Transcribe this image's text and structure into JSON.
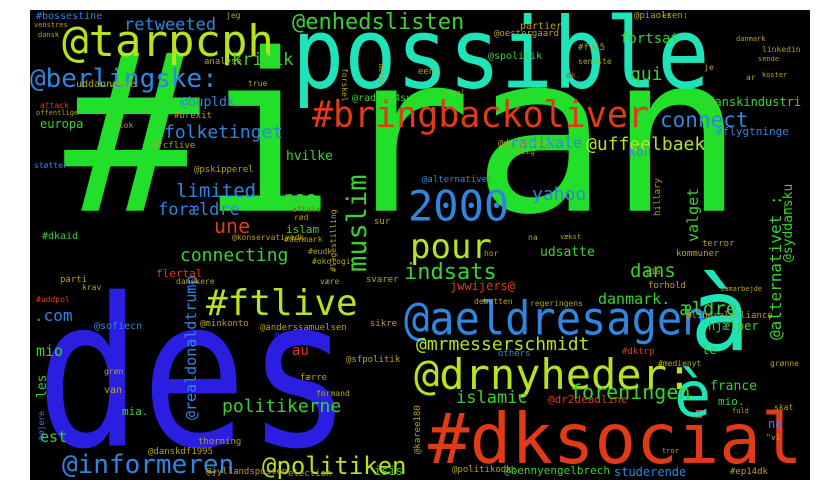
{
  "palette": {
    "green": "#22e02a",
    "teal": "#1fe3b9",
    "blue": "#2a1fe0",
    "midblue": "#2f86e0",
    "red": "#e03a16",
    "lime": "#b6e21f",
    "olive": "#b4a21d",
    "grass": "#3bd230"
  },
  "words": [
    {
      "text": "#iran",
      "color": "green"
    },
    {
      "text": "des",
      "color": "blue"
    },
    {
      "text": "possible",
      "color": "teal"
    },
    {
      "text": "#dksocial",
      "color": "red"
    },
    {
      "text": "@tarpcph",
      "color": "lime"
    },
    {
      "text": "#bringbackoliver",
      "color": "red"
    },
    {
      "text": "@aeldresagen",
      "color": "midblue"
    },
    {
      "text": "@drnyheder:",
      "color": "lime"
    },
    {
      "text": "à",
      "color": "teal"
    },
    {
      "text": "è",
      "color": "teal"
    },
    {
      "text": "2000",
      "color": "midblue"
    },
    {
      "text": "pour",
      "color": "lime"
    },
    {
      "text": "#ftlive",
      "color": "lime"
    },
    {
      "text": "@berlingske:",
      "color": "midblue"
    },
    {
      "text": "@informeren",
      "color": "midblue"
    },
    {
      "text": "@politiken",
      "color": "lime"
    },
    {
      "text": "@enhedslisten",
      "color": "grass"
    },
    {
      "text": "muslim",
      "color": "grass"
    },
    {
      "text": "indsats",
      "color": "grass"
    },
    {
      "text": "connect",
      "color": "midblue"
    },
    {
      "text": "retweeted",
      "color": "midblue"
    },
    {
      "text": "kritik",
      "color": "grass"
    },
    {
      "text": "folketinget",
      "color": "midblue"
    },
    {
      "text": "limited",
      "color": "midblue"
    },
    {
      "text": "forældre",
      "color": "midblue"
    },
    {
      "text": "connecting",
      "color": "grass"
    },
    {
      "text": "une",
      "color": "red"
    },
    {
      "text": "pas",
      "color": "grass"
    },
    {
      "text": "yahoo",
      "color": "midblue"
    },
    {
      "text": "@uffeelbaek",
      "color": "lime"
    },
    {
      "text": "radikale",
      "color": "midblue"
    },
    {
      "text": "@mrmesserschmidt",
      "color": "lime"
    },
    {
      "text": "foreningen",
      "color": "grass"
    },
    {
      "text": "politikerne",
      "color": "grass"
    },
    {
      "text": "islamic",
      "color": "grass"
    },
    {
      "text": "danmark.",
      "color": "grass"
    },
    {
      "text": "dans",
      "color": "grass"
    },
    {
      "text": "ældre",
      "color": "grass"
    },
    {
      "text": "@alternativet_:",
      "color": "grass"
    },
    {
      "text": "@syddansku",
      "color": "grass"
    },
    {
      "text": "valget",
      "color": "grass"
    },
    {
      "text": "qui",
      "color": "grass"
    },
    {
      "text": "fortsat",
      "color": "grass"
    },
    {
      "text": "mio",
      "color": "grass"
    },
    {
      "text": "est",
      "color": "grass"
    },
    {
      "text": ".com",
      "color": "midblue"
    },
    {
      "text": "@bupldk",
      "color": "midblue"
    },
    {
      "text": "@danskindustri",
      "color": "grass"
    },
    {
      "text": "#flygtninge",
      "color": "midblue"
    },
    {
      "text": "kbh",
      "color": "midblue"
    },
    {
      "text": "jwwijers@",
      "color": "red"
    },
    {
      "text": "udsatte",
      "color": "grass"
    },
    {
      "text": "studerende",
      "color": "midblue"
    },
    {
      "text": "@bennyengelbrech",
      "color": "grass"
    },
    {
      "text": "isis",
      "color": "grass"
    },
    {
      "text": "@dr2deadline",
      "color": "red"
    },
    {
      "text": "au",
      "color": "red"
    },
    {
      "text": "europa",
      "color": "grass"
    },
    {
      "text": "flertal",
      "color": "red"
    },
    {
      "text": "hvilke",
      "color": "grass"
    },
    {
      "text": "islam",
      "color": "grass"
    },
    {
      "text": "@realdonaldtrump",
      "color": "midblue"
    },
    {
      "text": "les",
      "color": "grass"
    },
    {
      "text": "mia.",
      "color": "grass"
    },
    {
      "text": "hjælper",
      "color": "grass"
    },
    {
      "text": "france",
      "color": "grass"
    },
    {
      "text": "mio.",
      "color": "grass"
    },
    {
      "text": "ne",
      "color": "midblue"
    },
    {
      "text": "@radio24syv",
      "color": "grass"
    },
    {
      "text": "@spolitik",
      "color": "grass"
    },
    {
      "text": "#dkaid",
      "color": "grass"
    },
    {
      "text": "analyse",
      "color": "olive"
    },
    {
      "text": "partier",
      "color": "olive"
    },
    {
      "text": "@oestergaard",
      "color": "olive"
    },
    {
      "text": "linkedin",
      "color": "olive"
    },
    {
      "text": "#fv15",
      "color": "olive"
    },
    {
      "text": "seneste",
      "color": "olive"
    },
    {
      "text": "uddannelse",
      "color": "olive"
    },
    {
      "text": "attack",
      "color": "red"
    },
    {
      "text": "blok",
      "color": "olive"
    },
    {
      "text": "#brexit",
      "color": "olive"
    },
    {
      "text": "#fcflive",
      "color": "olive"
    },
    {
      "text": "@pskipperel",
      "color": "olive"
    },
    {
      "text": "@alternativet_",
      "color": "midblue"
    },
    {
      "text": "@konservativedk",
      "color": "olive"
    },
    {
      "text": "#eudk",
      "color": "olive"
    },
    {
      "text": "#okologi",
      "color": "olive"
    },
    {
      "text": "#denmark",
      "color": "olive"
    },
    {
      "text": "danskere",
      "color": "olive"
    },
    {
      "text": "@sofiecn",
      "color": "midblue"
    },
    {
      "text": "@minkonto",
      "color": "olive"
    },
    {
      "text": "@anderssamuelsen",
      "color": "olive"
    },
    {
      "text": "@liberalalliance",
      "color": "olive"
    },
    {
      "text": "@sfpolitik",
      "color": "olive"
    },
    {
      "text": "#dktrp",
      "color": "red"
    },
    {
      "text": "#medienyt",
      "color": "olive"
    },
    {
      "text": "others",
      "color": "midblue"
    },
    {
      "text": "@drnyheder",
      "color": "olive"
    },
    {
      "text": "svarer",
      "color": "olive"
    },
    {
      "text": "sikre",
      "color": "olive"
    },
    {
      "text": "parti",
      "color": "olive"
    },
    {
      "text": "hillary",
      "color": "olive"
    },
    {
      "text": "kommuner",
      "color": "olive"
    },
    {
      "text": "terror",
      "color": "olive"
    },
    {
      "text": "@dkkorea",
      "color": "blue"
    },
    {
      "text": "@piaolsen:",
      "color": "olive"
    },
    {
      "text": "#bossestine",
      "color": "midblue"
    },
    {
      "text": "@politikodk:",
      "color": "olive"
    },
    {
      "text": "@karee180",
      "color": "olive"
    },
    {
      "text": "@jyllandsposten",
      "color": "olive"
    },
    {
      "text": "#ep14dk",
      "color": "olive"
    },
    {
      "text": "thorning",
      "color": "olive"
    },
    {
      "text": "@danskdf1995",
      "color": "olive"
    },
    {
      "text": "election",
      "color": "olive"
    },
    {
      "text": "grøn",
      "color": "olive"
    },
    {
      "text": "van",
      "color": "olive"
    },
    {
      "text": "færre",
      "color": "olive"
    },
    {
      "text": "formand",
      "color": "olive"
    },
    {
      "text": "regeringens",
      "color": "olive"
    },
    {
      "text": "debatten",
      "color": "olive"
    },
    {
      "text": "forhold",
      "color": "olive"
    },
    {
      "text": "højere",
      "color": "midblue"
    },
    {
      "text": "vigtig",
      "color": "olive"
    },
    {
      "text": "krav",
      "color": "olive"
    },
    {
      "text": "støtter",
      "color": "midblue"
    },
    {
      "text": "#uddpol",
      "color": "red"
    },
    {
      "text": "dansk",
      "color": "olive"
    },
    {
      "text": "venstres",
      "color": "olive"
    },
    {
      "text": "offentlige",
      "color": "olive"
    },
    {
      "text": "true",
      "color": "olive"
    },
    {
      "text": "een",
      "color": "olive"
    },
    {
      "text": "dk.",
      "color": "red"
    },
    {
      "text": "forskel",
      "color": "olive"
    },
    {
      "text": "mette",
      "color": "olive"
    },
    {
      "text": "je",
      "color": "olive"
    },
    {
      "text": "grønne",
      "color": "olive"
    },
    {
      "text": "skat",
      "color": "olive"
    },
    {
      "text": "fuld",
      "color": "olive"
    },
    {
      "text": "tror",
      "color": "olive"
    },
    {
      "text": "\"vi",
      "color": "olive"
    },
    {
      "text": "vækst",
      "color": "olive"
    },
    {
      "text": "pia",
      "color": "olive"
    },
    {
      "text": "na",
      "color": "olive"
    },
    {
      "text": "hor",
      "color": "olive"
    },
    {
      "text": "være",
      "color": "olive"
    },
    {
      "text": "le",
      "color": "grass"
    },
    {
      "text": "#ligestilling",
      "color": "olive"
    },
    {
      "text": "sur",
      "color": "olive"
    },
    {
      "text": "rød",
      "color": "olive"
    },
    {
      "text": "samarbejde",
      "color": "olive"
    },
    {
      "text": "jeg",
      "color": "olive"
    },
    {
      "text": "ar",
      "color": "olive"
    },
    {
      "text": "sende",
      "color": "olive"
    },
    {
      "text": "koster",
      "color": "olive"
    },
    {
      "text": "danmark",
      "color": "olive"
    },
    {
      "text": "er",
      "color": "olive"
    },
    {
      "text": "dkpol",
      "color": "olive"
    },
    {
      "text": "aftale",
      "color": "red"
    }
  ]
}
